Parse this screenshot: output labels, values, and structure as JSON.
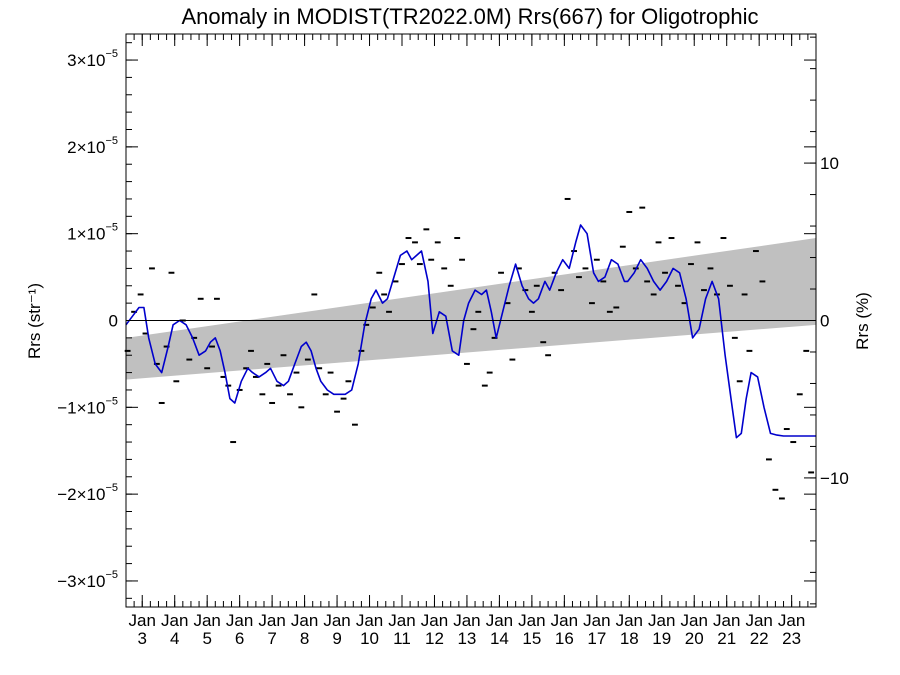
{
  "chart_data": {
    "type": "line",
    "title": "Anomaly in MODIST(TR2022.0M) Rrs(667) for Oligotrophic",
    "ylabel": "Rrs (str⁻¹)",
    "ylabel_right": "Rrs (%)",
    "x_axis": {
      "unit": "year (2000s)",
      "range": [
        2002.5,
        2023.75
      ],
      "tick_month_label": "Jan",
      "tick_labels": [
        "3",
        "4",
        "5",
        "6",
        "7",
        "8",
        "9",
        "10",
        "11",
        "12",
        "13",
        "14",
        "15",
        "16",
        "17",
        "18",
        "19",
        "20",
        "21",
        "22",
        "23"
      ],
      "tick_positions_year": [
        2003,
        2004,
        2005,
        2006,
        2007,
        2008,
        2009,
        2010,
        2011,
        2012,
        2013,
        2014,
        2015,
        2016,
        2017,
        2018,
        2019,
        2020,
        2021,
        2022,
        2023
      ]
    },
    "y_axis": {
      "range": [
        -3.3e-05,
        3.3e-05
      ],
      "tick_values": [
        -3e-05,
        -2e-05,
        -1e-05,
        0,
        1e-05,
        2e-05,
        3e-05
      ],
      "tick_labels": [
        {
          "mant": "−3×10",
          "exp": "−5"
        },
        {
          "mant": "−2×10",
          "exp": "−5"
        },
        {
          "mant": "−1×10",
          "exp": "−5"
        },
        {
          "mant": "0",
          "exp": ""
        },
        {
          "mant": "1×10",
          "exp": "−5"
        },
        {
          "mant": "2×10",
          "exp": "−5"
        },
        {
          "mant": "3×10",
          "exp": "−5"
        }
      ]
    },
    "y_axis_right": {
      "range": [
        -18.2,
        18.2
      ],
      "tick_values": [
        -10,
        0,
        10
      ],
      "tick_labels": [
        "−10",
        "0",
        "10"
      ]
    },
    "zero_line": 0,
    "trend_band": {
      "color": "#c0c0c0",
      "x": [
        2002.5,
        2023.75
      ],
      "upper": [
        -2e-06,
        9.5e-06
      ],
      "lower": [
        -6.8e-06,
        -5e-07
      ]
    },
    "smoothed_series": {
      "name": "",
      "color": "#0000cc",
      "x": [
        2002.5,
        2002.7,
        2002.9,
        2003.05,
        2003.2,
        2003.4,
        2003.6,
        2003.8,
        2003.95,
        2004.15,
        2004.35,
        2004.55,
        2004.75,
        2004.95,
        2005.1,
        2005.25,
        2005.4,
        2005.55,
        2005.7,
        2005.85,
        2006.05,
        2006.25,
        2006.4,
        2006.6,
        2006.8,
        2006.95,
        2007.15,
        2007.35,
        2007.5,
        2007.7,
        2007.9,
        2008.05,
        2008.2,
        2008.35,
        2008.5,
        2008.7,
        2008.9,
        2009.05,
        2009.25,
        2009.45,
        2009.65,
        2009.85,
        2010.05,
        2010.2,
        2010.4,
        2010.55,
        2010.75,
        2010.95,
        2011.15,
        2011.3,
        2011.45,
        2011.6,
        2011.8,
        2011.95,
        2012.15,
        2012.35,
        2012.55,
        2012.75,
        2012.9,
        2013.05,
        2013.25,
        2013.45,
        2013.6,
        2013.75,
        2013.9,
        2014.1,
        2014.3,
        2014.5,
        2014.7,
        2014.9,
        2015.05,
        2015.2,
        2015.4,
        2015.55,
        2015.75,
        2015.95,
        2016.15,
        2016.35,
        2016.5,
        2016.7,
        2016.9,
        2017.05,
        2017.25,
        2017.45,
        2017.65,
        2017.85,
        2017.95,
        2018.15,
        2018.35,
        2018.55,
        2018.75,
        2018.95,
        2019.15,
        2019.35,
        2019.55,
        2019.75,
        2019.95,
        2020.15,
        2020.35,
        2020.55,
        2020.75,
        2020.95,
        2021.15,
        2021.3,
        2021.45,
        2021.6,
        2021.75,
        2021.95,
        2022.15,
        2022.35,
        2022.55,
        2022.75,
        2022.95,
        2023.15,
        2023.35,
        2023.55,
        2023.75
      ],
      "y": [
        -5e-07,
        5e-07,
        1.5e-06,
        1.5e-06,
        -2e-06,
        -5e-06,
        -6e-06,
        -3e-06,
        -5e-07,
        0.0,
        -5e-07,
        -2e-06,
        -4e-06,
        -3.5e-06,
        -2.5e-06,
        -2e-06,
        -3.5e-06,
        -6e-06,
        -9e-06,
        -9.5e-06,
        -7e-06,
        -5.5e-06,
        -6e-06,
        -6.5e-06,
        -6e-06,
        -5.5e-06,
        -7e-06,
        -7.5e-06,
        -7e-06,
        -5e-06,
        -3e-06,
        -2.5e-06,
        -3.5e-06,
        -5.5e-06,
        -7e-06,
        -8e-06,
        -8.5e-06,
        -8.5e-06,
        -8.5e-06,
        -8e-06,
        -5e-06,
        -5e-07,
        2.5e-06,
        3.5e-06,
        2e-06,
        2.5e-06,
        5e-06,
        7.5e-06,
        8e-06,
        7e-06,
        7.5e-06,
        8e-06,
        4.5e-06,
        -1.5e-06,
        1e-06,
        5e-07,
        -3.5e-06,
        -4e-06,
        0.0,
        2e-06,
        3.5e-06,
        3e-06,
        3.5e-06,
        1e-06,
        -2e-06,
        1e-06,
        4e-06,
        6.5e-06,
        4e-06,
        2.5e-06,
        2e-06,
        2.5e-06,
        4.5e-06,
        3.5e-06,
        5.5e-06,
        7e-06,
        6e-06,
        9e-06,
        1.1e-05,
        1e-05,
        5.5e-06,
        4.5e-06,
        5e-06,
        7e-06,
        6.5e-06,
        4.5e-06,
        4.5e-06,
        5.5e-06,
        7e-06,
        6e-06,
        4.5e-06,
        3.5e-06,
        4.5e-06,
        6e-06,
        5.5e-06,
        2.5e-06,
        -2e-06,
        -1e-06,
        2.5e-06,
        4.5e-06,
        2.5e-06,
        -4e-06,
        -9.5e-06,
        -1.35e-05,
        -1.3e-05,
        -9e-06,
        -6e-06,
        -6.5e-06,
        -1e-05,
        -1.3e-05,
        -1.32e-05,
        -1.33e-05,
        -1.33e-05,
        -1.33e-05,
        -1.33e-05,
        -1.33e-05,
        -1.33e-05
      ]
    },
    "monthly_marks": {
      "color": "#000000",
      "x": [
        2002.55,
        2002.75,
        2002.95,
        2003.1,
        2003.3,
        2003.45,
        2003.6,
        2003.75,
        2003.9,
        2004.05,
        2004.25,
        2004.45,
        2004.6,
        2004.8,
        2005.0,
        2005.15,
        2005.3,
        2005.5,
        2005.65,
        2005.8,
        2006.0,
        2006.2,
        2006.35,
        2006.5,
        2006.7,
        2006.85,
        2007.0,
        2007.2,
        2007.35,
        2007.55,
        2007.75,
        2007.9,
        2008.1,
        2008.3,
        2008.45,
        2008.65,
        2008.8,
        2009.0,
        2009.2,
        2009.35,
        2009.55,
        2009.75,
        2009.9,
        2010.1,
        2010.3,
        2010.45,
        2010.6,
        2010.8,
        2011.0,
        2011.2,
        2011.4,
        2011.55,
        2011.75,
        2011.9,
        2012.1,
        2012.3,
        2012.5,
        2012.7,
        2012.85,
        2013.0,
        2013.2,
        2013.35,
        2013.55,
        2013.7,
        2013.85,
        2014.05,
        2014.25,
        2014.4,
        2014.6,
        2014.8,
        2015.0,
        2015.15,
        2015.35,
        2015.5,
        2015.7,
        2015.9,
        2016.1,
        2016.3,
        2016.45,
        2016.65,
        2016.85,
        2017.0,
        2017.2,
        2017.4,
        2017.6,
        2017.8,
        2018.0,
        2018.2,
        2018.4,
        2018.55,
        2018.75,
        2018.9,
        2019.1,
        2019.3,
        2019.5,
        2019.7,
        2019.9,
        2020.1,
        2020.3,
        2020.5,
        2020.7,
        2020.9,
        2021.1,
        2021.25,
        2021.4,
        2021.55,
        2021.7,
        2021.9,
        2022.1,
        2022.3,
        2022.5,
        2022.7,
        2022.85,
        2023.05,
        2023.25,
        2023.45,
        2023.6
      ],
      "y": [
        -3.5e-06,
        1e-06,
        3e-06,
        -1.5e-06,
        6e-06,
        -5e-06,
        -9.5e-06,
        -3e-06,
        5.5e-06,
        -7e-06,
        0.0,
        -4.5e-06,
        -2e-06,
        2.5e-06,
        -5.5e-06,
        -3e-06,
        2.5e-06,
        -6.5e-06,
        -7.5e-06,
        -1.4e-05,
        -8e-06,
        -5.5e-06,
        -3.5e-06,
        -6.5e-06,
        -8.5e-06,
        -5e-06,
        -9.5e-06,
        -7.5e-06,
        -4e-06,
        -8.5e-06,
        -6e-06,
        -1e-05,
        -4.5e-06,
        3e-06,
        -5.5e-06,
        -8.5e-06,
        -6e-06,
        -1.05e-05,
        -9e-06,
        -7e-06,
        -1.2e-05,
        -3.5e-06,
        -5e-07,
        1.5e-06,
        5.5e-06,
        3e-06,
        1e-06,
        4.5e-06,
        6.5e-06,
        9.5e-06,
        9e-06,
        6.5e-06,
        1.05e-05,
        7e-06,
        9e-06,
        6e-06,
        4e-06,
        9.5e-06,
        7e-06,
        -5e-06,
        -1e-06,
        1e-06,
        -7.5e-06,
        -6e-06,
        -2e-06,
        5.5e-06,
        2e-06,
        -4.5e-06,
        6e-06,
        3.5e-06,
        1e-06,
        4e-06,
        -2.5e-06,
        -4e-06,
        5.5e-06,
        3.5e-06,
        1.4e-05,
        8e-06,
        5e-06,
        6e-06,
        2e-06,
        7e-06,
        4.5e-06,
        1e-06,
        1.5e-06,
        8.5e-06,
        1.25e-05,
        6e-06,
        1.3e-05,
        4.5e-06,
        3e-06,
        9e-06,
        5.5e-06,
        9.5e-06,
        4e-06,
        2e-06,
        6.5e-06,
        9e-06,
        3.5e-06,
        6e-06,
        3e-06,
        9.5e-06,
        4e-06,
        -2e-06,
        -7e-06,
        3e-06,
        -3.5e-06,
        8e-06,
        4.5e-06,
        -1.6e-05,
        -1.95e-05,
        -2.05e-05,
        -1.25e-05,
        -1.4e-05,
        -8.5e-06,
        -3.5e-06,
        -1.75e-05
      ],
      "w": 0.18
    }
  }
}
